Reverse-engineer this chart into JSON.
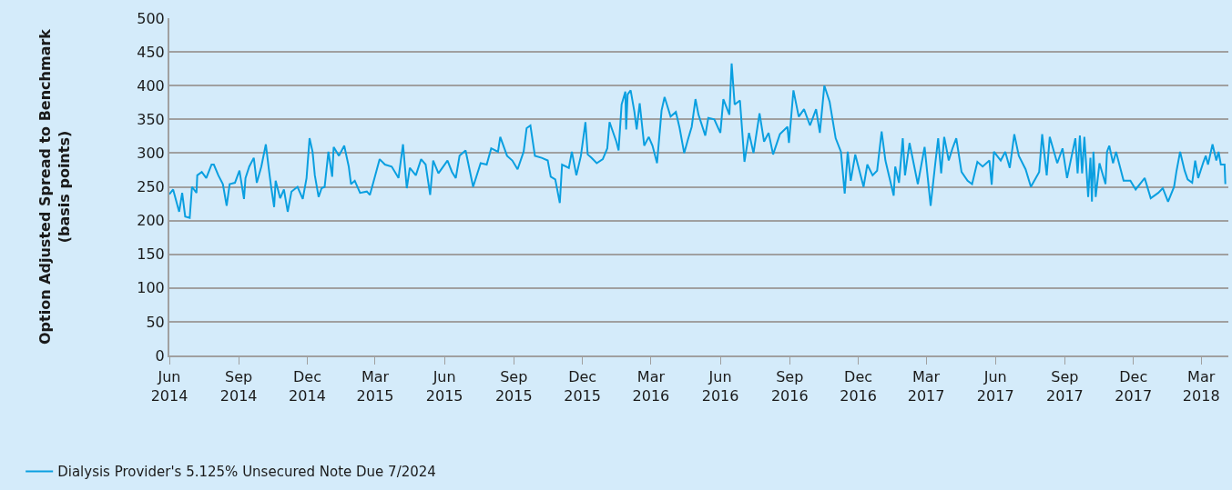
{
  "chart_data": {
    "type": "line",
    "ylabel": "Option Adjusted Spread to Benchmark\n(basis points)",
    "xlim": [
      "2014-06-01",
      "2018-04-06"
    ],
    "xticks": [
      {
        "value": "2014-06-01",
        "label": "Jun\n2014"
      },
      {
        "value": "2014-09-01",
        "label": "Sep\n2014"
      },
      {
        "value": "2014-12-01",
        "label": "Dec\n2014"
      },
      {
        "value": "2015-03-01",
        "label": "Mar\n2015"
      },
      {
        "value": "2015-06-01",
        "label": "Jun\n2015"
      },
      {
        "value": "2015-09-01",
        "label": "Sep\n2015"
      },
      {
        "value": "2015-12-01",
        "label": "Dec\n2015"
      },
      {
        "value": "2016-03-01",
        "label": "Mar\n2016"
      },
      {
        "value": "2016-06-01",
        "label": "Jun\n2016"
      },
      {
        "value": "2016-09-01",
        "label": "Sep\n2016"
      },
      {
        "value": "2016-12-01",
        "label": "Dec\n2016"
      },
      {
        "value": "2017-03-01",
        "label": "Mar\n2017"
      },
      {
        "value": "2017-06-01",
        "label": "Jun\n2017"
      },
      {
        "value": "2017-09-01",
        "label": "Sep\n2017"
      },
      {
        "value": "2017-12-01",
        "label": "Dec\n2017"
      },
      {
        "value": "2018-03-01",
        "label": "Mar\n2018"
      }
    ],
    "ylim": [
      0,
      500
    ],
    "yticks": [
      0,
      50,
      100,
      150,
      200,
      250,
      300,
      350,
      400,
      450,
      500
    ],
    "grid": "y",
    "legend": "bottom left",
    "marker": "none",
    "line_style": "solid",
    "series": [
      {
        "name": "Dialysis Provider's 5.125% Unsecured Note Due 7/2024",
        "color": "#0a9fe0",
        "x": [
          "2014-06-01",
          "2014-06-06",
          "2014-06-14",
          "2014-06-18",
          "2014-06-22",
          "2014-06-28",
          "2014-07-01",
          "2014-07-07",
          "2014-07-08",
          "2014-07-14",
          "2014-07-20",
          "2014-07-27",
          "2014-07-30",
          "2014-08-05",
          "2014-08-11",
          "2014-08-16",
          "2014-08-20",
          "2014-08-27",
          "2014-09-02",
          "2014-09-08",
          "2014-09-10",
          "2014-09-15",
          "2014-09-21",
          "2014-09-25",
          "2014-10-01",
          "2014-10-07",
          "2014-10-11",
          "2014-10-14",
          "2014-10-18",
          "2014-10-20",
          "2014-10-26",
          "2014-10-31",
          "2014-11-05",
          "2014-11-10",
          "2014-11-18",
          "2014-11-25",
          "2014-11-30",
          "2014-12-04",
          "2014-12-08",
          "2014-12-11",
          "2014-12-16",
          "2014-12-20",
          "2014-12-24",
          "2014-12-29",
          "2015-01-03",
          "2015-01-05",
          "2015-01-12",
          "2015-01-19",
          "2015-01-25",
          "2015-01-28",
          "2015-02-02",
          "2015-02-09",
          "2015-02-18",
          "2015-02-22",
          "2015-02-26",
          "2015-03-07",
          "2015-03-14",
          "2015-03-23",
          "2015-04-01",
          "2015-04-07",
          "2015-04-12",
          "2015-04-16",
          "2015-04-24",
          "2015-05-01",
          "2015-05-07",
          "2015-05-13",
          "2015-05-17",
          "2015-05-24",
          "2015-06-05",
          "2015-06-11",
          "2015-06-16",
          "2015-06-21",
          "2015-06-29",
          "2015-07-09",
          "2015-07-19",
          "2015-07-27",
          "2015-08-02",
          "2015-08-11",
          "2015-08-14",
          "2015-08-23",
          "2015-08-30",
          "2015-09-06",
          "2015-09-14",
          "2015-09-18",
          "2015-09-23",
          "2015-09-29",
          "2015-10-08",
          "2015-10-16",
          "2015-10-20",
          "2015-10-26",
          "2015-11-01",
          "2015-11-04",
          "2015-11-13",
          "2015-11-17",
          "2015-11-23",
          "2015-11-29",
          "2015-12-05",
          "2015-12-08",
          "2015-12-13",
          "2015-12-20",
          "2015-12-28",
          "2016-01-03",
          "2016-01-06",
          "2016-01-15",
          "2016-01-18",
          "2016-01-22",
          "2016-01-27",
          "2016-01-28",
          "2016-01-30",
          "2016-02-03",
          "2016-02-08",
          "2016-02-11",
          "2016-02-15",
          "2016-02-21",
          "2016-02-27",
          "2016-03-03",
          "2016-03-09",
          "2016-03-15",
          "2016-03-19",
          "2016-03-27",
          "2016-04-03",
          "2016-04-08",
          "2016-04-14",
          "2016-04-19",
          "2016-04-24",
          "2016-04-29",
          "2016-05-03",
          "2016-05-12",
          "2016-05-16",
          "2016-05-24",
          "2016-06-01",
          "2016-06-05",
          "2016-06-13",
          "2016-06-16",
          "2016-06-20",
          "2016-06-27",
          "2016-07-03",
          "2016-07-09",
          "2016-07-15",
          "2016-07-23",
          "2016-07-29",
          "2016-08-04",
          "2016-08-10",
          "2016-08-19",
          "2016-08-29",
          "2016-08-31",
          "2016-09-06",
          "2016-09-13",
          "2016-09-20",
          "2016-09-28",
          "2016-10-06",
          "2016-10-11",
          "2016-10-17",
          "2016-10-24",
          "2016-11-01",
          "2016-11-08",
          "2016-11-13",
          "2016-11-17",
          "2016-11-21",
          "2016-11-27",
          "2016-12-08",
          "2016-12-13",
          "2016-12-20",
          "2016-12-26",
          "2017-01-01",
          "2017-01-06",
          "2017-01-17",
          "2017-01-19",
          "2017-01-24",
          "2017-01-29",
          "2017-02-01",
          "2017-02-07",
          "2017-02-18",
          "2017-02-27",
          "2017-03-07",
          "2017-03-13",
          "2017-03-17",
          "2017-03-21",
          "2017-03-25",
          "2017-03-31",
          "2017-04-05",
          "2017-04-10",
          "2017-04-17",
          "2017-04-25",
          "2017-05-01",
          "2017-05-08",
          "2017-05-15",
          "2017-05-24",
          "2017-05-27",
          "2017-05-30",
          "2017-06-08",
          "2017-06-14",
          "2017-06-20",
          "2017-06-26",
          "2017-07-02",
          "2017-07-11",
          "2017-07-18",
          "2017-07-29",
          "2017-08-02",
          "2017-08-08",
          "2017-08-12",
          "2017-08-22",
          "2017-08-29",
          "2017-09-04",
          "2017-09-15",
          "2017-09-18",
          "2017-09-21",
          "2017-09-24",
          "2017-09-27",
          "2017-10-02",
          "2017-10-05",
          "2017-10-07",
          "2017-10-09",
          "2017-10-12",
          "2017-10-17",
          "2017-10-25",
          "2017-10-27",
          "2017-10-30",
          "2017-11-04",
          "2017-11-08",
          "2017-11-18",
          "2017-11-27",
          "2017-12-04",
          "2017-12-16",
          "2017-12-24",
          "2018-01-03",
          "2018-01-09",
          "2018-01-16",
          "2018-01-24",
          "2018-01-27",
          "2018-02-01",
          "2018-02-07",
          "2018-02-11",
          "2018-02-17",
          "2018-02-21",
          "2018-02-25",
          "2018-03-04",
          "2018-03-07",
          "2018-03-10",
          "2018-03-16",
          "2018-03-21",
          "2018-03-24",
          "2018-03-27",
          "2018-04-01",
          "2018-04-02"
        ],
        "values": [
          239,
          246,
          213,
          241,
          206,
          204,
          250,
          241,
          267,
          272,
          263,
          283,
          283,
          267,
          254,
          222,
          254,
          256,
          274,
          232,
          263,
          280,
          293,
          256,
          280,
          313,
          276,
          250,
          220,
          259,
          233,
          246,
          213,
          243,
          250,
          232,
          263,
          322,
          302,
          267,
          235,
          248,
          250,
          302,
          265,
          309,
          296,
          311,
          280,
          254,
          259,
          241,
          243,
          238,
          254,
          291,
          283,
          280,
          263,
          313,
          248,
          278,
          267,
          291,
          283,
          238,
          289,
          270,
          289,
          272,
          263,
          296,
          304,
          250,
          285,
          283,
          307,
          302,
          324,
          296,
          289,
          276,
          302,
          337,
          341,
          296,
          293,
          289,
          265,
          261,
          226,
          283,
          278,
          302,
          267,
          296,
          346,
          298,
          293,
          285,
          291,
          307,
          346,
          317,
          304,
          372,
          391,
          335,
          387,
          393,
          361,
          335,
          374,
          311,
          324,
          311,
          285,
          363,
          383,
          354,
          361,
          337,
          300,
          320,
          339,
          380,
          357,
          326,
          352,
          350,
          330,
          380,
          357,
          433,
          372,
          378,
          287,
          330,
          300,
          359,
          317,
          330,
          298,
          328,
          339,
          315,
          393,
          354,
          365,
          341,
          365,
          330,
          400,
          376,
          322,
          302,
          240,
          302,
          259,
          298,
          250,
          283,
          267,
          274,
          332,
          289,
          237,
          280,
          256,
          322,
          267,
          315,
          254,
          309,
          222,
          283,
          322,
          270,
          324,
          289,
          307,
          322,
          272,
          259,
          254,
          287,
          280,
          289,
          253,
          302,
          289,
          302,
          278,
          328,
          296,
          276,
          250,
          272,
          328,
          267,
          324,
          285,
          307,
          263,
          322,
          270,
          326,
          270,
          324,
          235,
          293,
          228,
          302,
          235,
          285,
          254,
          302,
          311,
          285,
          302,
          259,
          259,
          246,
          263,
          233,
          241,
          248,
          228,
          250,
          272,
          302,
          274,
          261,
          256,
          289,
          263,
          287,
          296,
          283,
          313,
          289,
          302,
          283,
          283,
          254
        ]
      }
    ]
  }
}
